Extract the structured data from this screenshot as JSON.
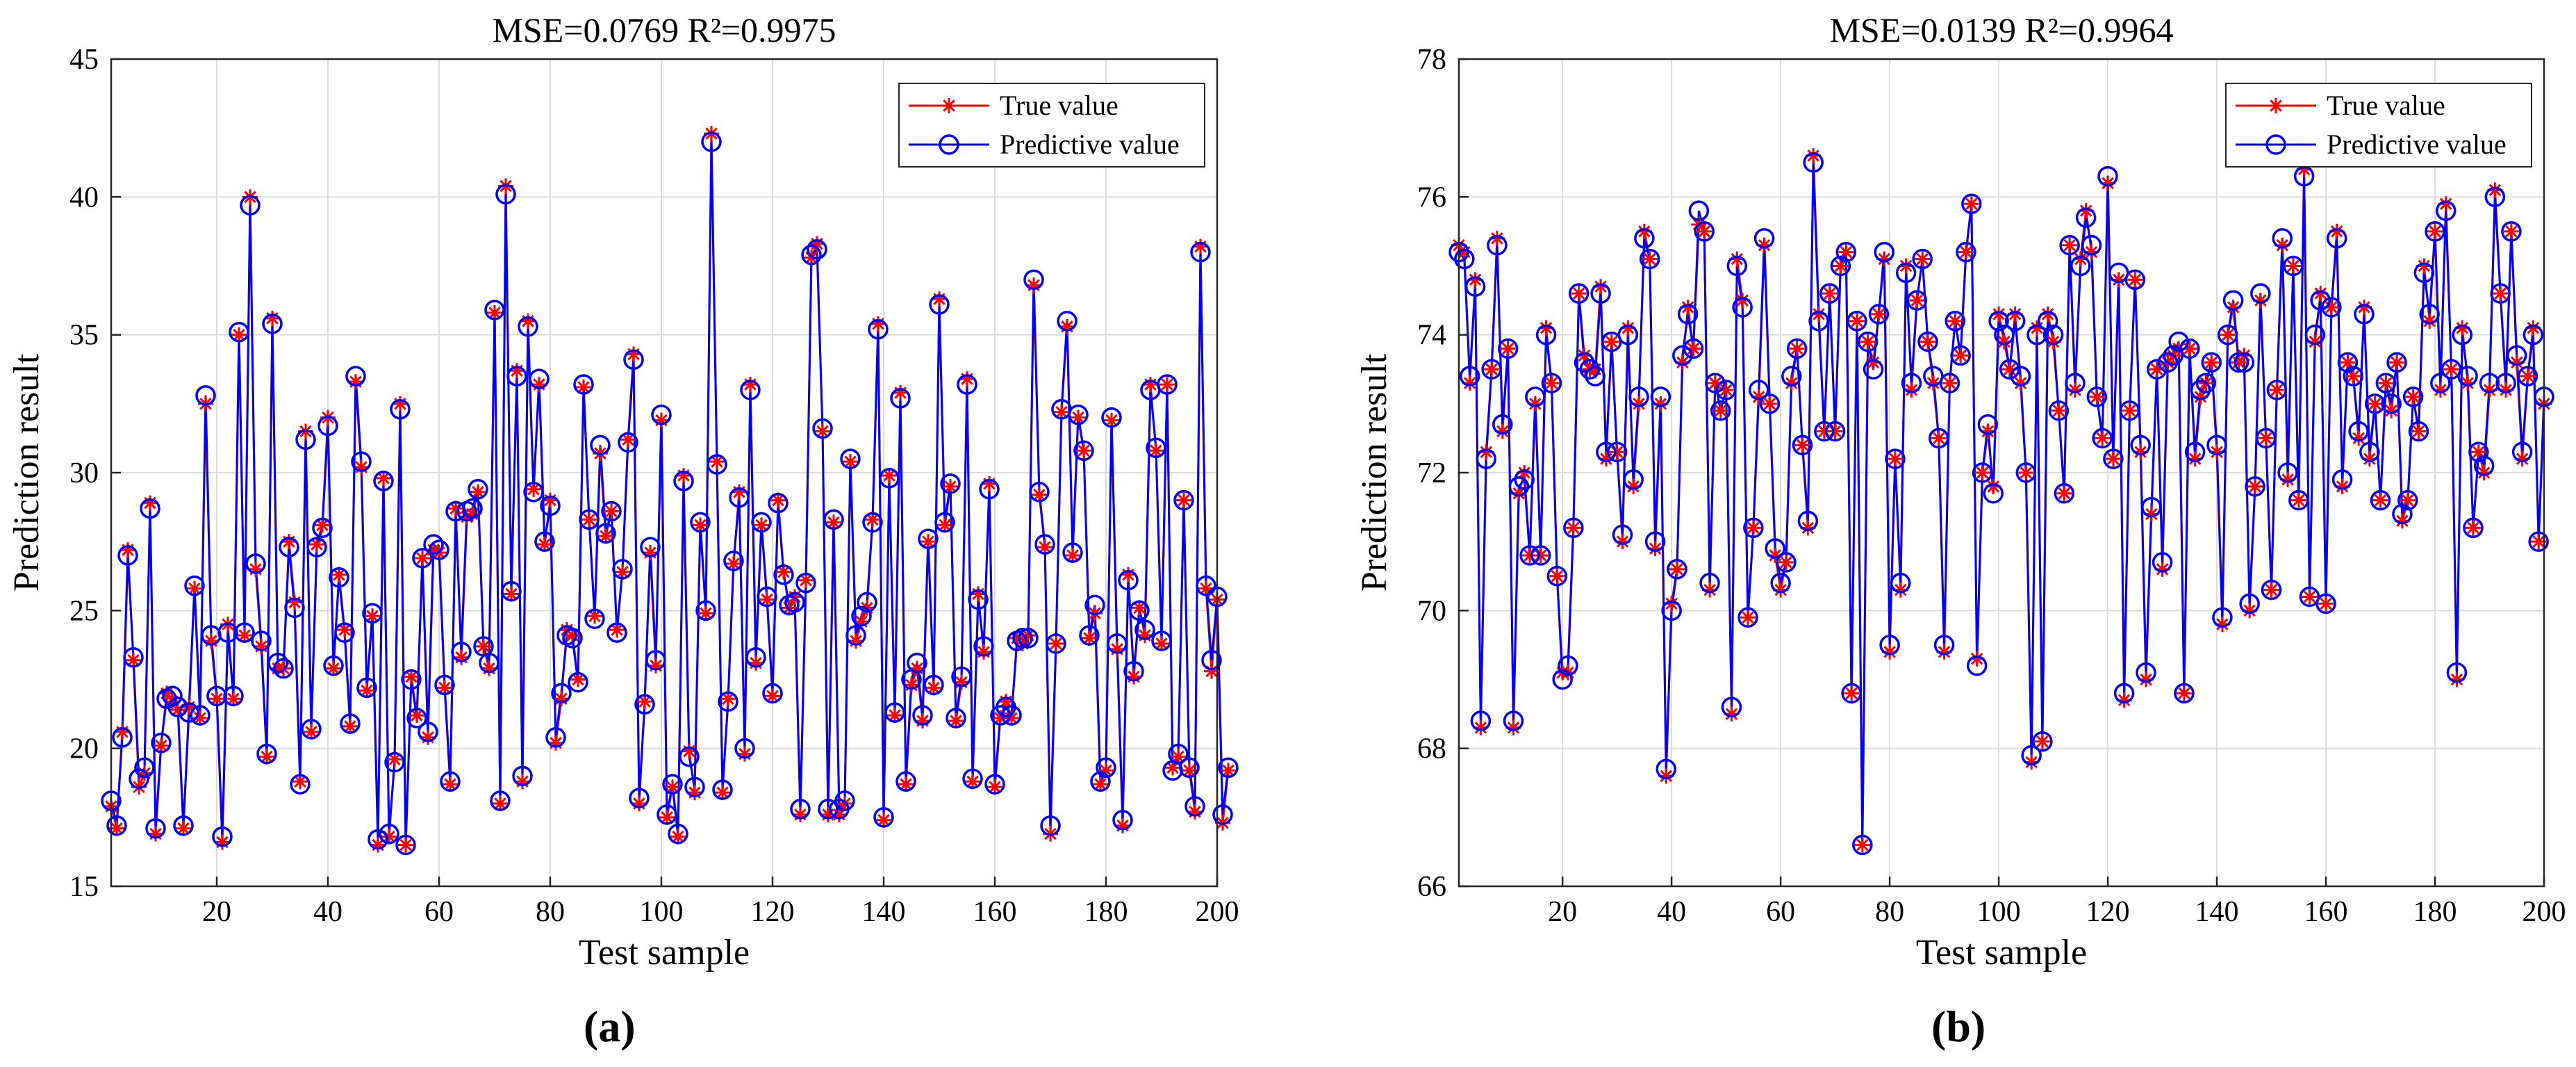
{
  "chart_data": [
    {
      "type": "line",
      "panel_label": "(a)",
      "title": "MSE=0.0769 R²=0.9975",
      "xlabel": "Test sample",
      "ylabel": "Prediction result",
      "xlim": [
        1,
        200
      ],
      "ylim": [
        15,
        45
      ],
      "xticks": [
        20,
        40,
        60,
        80,
        100,
        120,
        140,
        160,
        180,
        200
      ],
      "yticks": [
        15,
        20,
        25,
        30,
        35,
        40,
        45
      ],
      "grid": true,
      "legend_position": "top-right",
      "series": [
        {
          "name": "True value",
          "color": "#ff0000",
          "marker": "asterisk",
          "line": true,
          "values": [
            17.9,
            17.1,
            20.6,
            27.2,
            23.2,
            18.6,
            19.1,
            28.9,
            16.9,
            20.1,
            22.0,
            21.7,
            21.4,
            17.1,
            21.5,
            25.8,
            21.1,
            32.5,
            23.9,
            21.8,
            16.6,
            24.5,
            21.8,
            35.0,
            24.1,
            40.0,
            26.5,
            23.7,
            19.7,
            35.6,
            22.9,
            22.9,
            27.5,
            25.3,
            18.8,
            31.5,
            20.6,
            27.4,
            28.1,
            32.0,
            22.9,
            26.3,
            24.3,
            20.8,
            33.3,
            30.2,
            22.1,
            24.8,
            16.5,
            29.8,
            16.8,
            19.6,
            32.5,
            16.5,
            22.6,
            21.2,
            26.9,
            20.4,
            27.2,
            27.1,
            22.2,
            18.7,
            28.7,
            23.3,
            28.4,
            28.5,
            29.3,
            23.7,
            22.9,
            35.8,
            18.0,
            40.4,
            25.6,
            33.7,
            18.8,
            35.5,
            29.4,
            33.2,
            27.4,
            29.0,
            20.2,
            21.8,
            24.3,
            24.1,
            22.5,
            33.1,
            28.3,
            24.8,
            30.7,
            27.7,
            28.6,
            24.3,
            26.4,
            31.2,
            34.3,
            18.0,
            21.7,
            27.1,
            23.0,
            31.9,
            17.5,
            18.6,
            16.8,
            29.9,
            19.9,
            18.4,
            28.1,
            24.9,
            42.3,
            30.4,
            18.4,
            21.8,
            26.7,
            29.3,
            19.8,
            33.2,
            23.1,
            28.1,
            25.4,
            21.9,
            29.0,
            26.4,
            25.1,
            25.5,
            17.6,
            26.1,
            37.8,
            38.3,
            31.5,
            17.6,
            28.2,
            17.6,
            18.0,
            30.4,
            23.9,
            24.6,
            25.1,
            28.3,
            35.4,
            17.4,
            29.9,
            21.2,
            32.9,
            18.7,
            22.3,
            22.9,
            21.0,
            27.5,
            22.2,
            36.3,
            28.1,
            29.5,
            21.0,
            22.4,
            33.4,
            18.8,
            25.6,
            23.5,
            29.6,
            18.6,
            21.1,
            21.7,
            21.1,
            24.0,
            23.8,
            24.1,
            36.8,
            29.2,
            27.3,
            16.9,
            23.8,
            32.2,
            35.3,
            27.0,
            32.0,
            30.8,
            24.0,
            24.9,
            18.7,
            19.2,
            31.9,
            23.6,
            17.2,
            26.3,
            22.6,
            25.1,
            24.1,
            33.2,
            30.8,
            23.8,
            33.2,
            19.3,
            19.7,
            29.0,
            19.2,
            17.7,
            38.2,
            25.8,
            22.8,
            25.4,
            17.3,
            19.2
          ]
        },
        {
          "name": "Predictive value",
          "color": "#0000ff",
          "marker": "circle",
          "line": true,
          "values": [
            18.1,
            17.2,
            20.4,
            27.0,
            23.3,
            18.9,
            19.3,
            28.7,
            17.1,
            20.2,
            21.8,
            21.9,
            21.5,
            17.2,
            21.3,
            25.9,
            21.2,
            32.8,
            24.1,
            21.9,
            16.8,
            24.2,
            21.9,
            35.1,
            24.2,
            39.7,
            26.7,
            23.9,
            19.8,
            35.4,
            23.1,
            22.9,
            27.3,
            25.1,
            18.7,
            31.2,
            20.7,
            27.3,
            28.0,
            31.7,
            23.0,
            26.2,
            24.2,
            20.9,
            33.5,
            30.4,
            22.2,
            24.9,
            16.7,
            29.7,
            16.9,
            19.5,
            32.3,
            16.5,
            22.5,
            21.1,
            26.9,
            20.6,
            27.4,
            27.2,
            22.3,
            18.8,
            28.6,
            23.5,
            28.6,
            28.7,
            29.4,
            23.7,
            23.1,
            35.9,
            18.1,
            40.1,
            25.7,
            33.5,
            19.0,
            35.3,
            29.3,
            33.4,
            27.5,
            28.8,
            20.4,
            22.0,
            24.1,
            24.0,
            22.4,
            33.2,
            28.3,
            24.7,
            31.0,
            27.8,
            28.6,
            24.2,
            26.5,
            31.1,
            34.1,
            18.2,
            21.6,
            27.3,
            23.2,
            32.1,
            17.6,
            18.7,
            16.9,
            29.7,
            19.7,
            18.6,
            28.2,
            25.0,
            42.0,
            30.3,
            18.5,
            21.7,
            26.8,
            29.1,
            20.0,
            33.0,
            23.3,
            28.2,
            25.5,
            22.0,
            28.9,
            26.3,
            25.2,
            25.3,
            17.8,
            26.0,
            37.9,
            38.1,
            31.6,
            17.8,
            28.3,
            17.8,
            18.1,
            30.5,
            24.1,
            24.8,
            25.3,
            28.2,
            35.2,
            17.5,
            29.8,
            21.3,
            32.7,
            18.8,
            22.5,
            23.1,
            21.2,
            27.6,
            22.3,
            36.1,
            28.2,
            29.6,
            21.1,
            22.6,
            33.2,
            18.9,
            25.4,
            23.7,
            29.4,
            18.7,
            21.2,
            21.5,
            21.2,
            23.9,
            24.0,
            24.0,
            37.0,
            29.3,
            27.4,
            17.2,
            23.8,
            32.3,
            35.5,
            27.1,
            32.1,
            30.8,
            24.1,
            25.2,
            18.8,
            19.3,
            32.0,
            23.8,
            17.4,
            26.1,
            22.8,
            25.0,
            24.3,
            33.0,
            30.9,
            23.9,
            33.2,
            19.2,
            19.8,
            29.0,
            19.3,
            17.9,
            38.0,
            25.9,
            23.2,
            25.5,
            17.6,
            19.3
          ]
        }
      ]
    },
    {
      "type": "line",
      "panel_label": "(b)",
      "title": "MSE=0.0139 R²=0.9964",
      "xlabel": "Test sample",
      "ylabel": "Prediction result",
      "xlim": [
        1,
        200
      ],
      "ylim": [
        66,
        78
      ],
      "xticks": [
        20,
        40,
        60,
        80,
        100,
        120,
        140,
        160,
        180,
        200
      ],
      "yticks": [
        66,
        68,
        70,
        72,
        74,
        76,
        78
      ],
      "grid": true,
      "legend_position": "top-right",
      "series": [
        {
          "name": "True value",
          "color": "#ff0000",
          "marker": "asterisk",
          "line": true,
          "values": [
            75.3,
            75.2,
            73.3,
            74.8,
            68.3,
            72.3,
            73.5,
            75.4,
            72.6,
            73.8,
            68.3,
            71.7,
            72.0,
            70.8,
            73.0,
            70.8,
            74.1,
            73.3,
            70.5,
            69.1,
            69.1,
            71.2,
            74.6,
            73.7,
            73.5,
            73.5,
            74.7,
            72.2,
            73.9,
            72.3,
            71.0,
            74.1,
            71.8,
            73.0,
            75.5,
            75.1,
            70.9,
            73.0,
            67.6,
            70.1,
            70.6,
            73.6,
            74.4,
            73.8,
            75.6,
            75.5,
            70.3,
            73.3,
            72.9,
            73.2,
            68.5,
            75.1,
            74.5,
            69.9,
            71.2,
            73.1,
            75.3,
            73.0,
            70.8,
            70.3,
            70.7,
            73.3,
            73.8,
            72.4,
            71.2,
            76.6,
            74.3,
            72.6,
            74.6,
            72.6,
            75.0,
            75.2,
            68.8,
            74.2,
            66.6,
            73.9,
            73.6,
            74.3,
            75.1,
            69.4,
            72.2,
            70.3,
            75.0,
            73.2,
            74.5,
            75.1,
            73.9,
            73.3,
            72.5,
            69.4,
            73.3,
            74.2,
            73.7,
            75.2,
            75.9,
            69.3,
            72.0,
            72.6,
            71.8,
            74.3,
            73.9,
            73.5,
            74.3,
            73.3,
            72.0,
            67.8,
            74.1,
            68.1,
            74.3,
            73.9,
            72.9,
            71.7,
            75.3,
            73.2,
            75.1,
            75.8,
            75.2,
            73.1,
            72.5,
            76.2,
            72.2,
            74.8,
            68.7,
            72.9,
            74.8,
            72.3,
            69.0,
            71.4,
            73.5,
            70.6,
            73.6,
            73.7,
            73.8,
            68.8,
            73.8,
            72.2,
            73.1,
            73.3,
            73.6,
            72.3,
            69.8,
            74.0,
            74.4,
            73.6,
            73.7,
            70.0,
            71.8,
            74.5,
            72.5,
            70.3,
            73.2,
            75.3,
            71.9,
            75.0,
            71.6,
            76.4,
            70.2,
            73.9,
            74.6,
            70.1,
            74.4,
            75.5,
            71.8,
            73.6,
            73.4,
            72.5,
            74.4,
            72.2,
            73.0,
            71.6,
            73.3,
            72.9,
            73.6,
            71.3,
            71.6,
            73.1,
            72.6,
            75.0,
            74.2,
            75.5,
            73.2,
            75.9,
            73.5,
            69.0,
            74.1,
            73.3,
            71.2,
            72.3,
            72.0,
            73.2,
            76.1,
            74.6,
            73.2,
            75.5,
            73.6,
            72.2,
            73.4,
            74.1,
            71.0,
            73.0
          ]
        },
        {
          "name": "Predictive value",
          "color": "#0000ff",
          "marker": "circle",
          "line": true,
          "values": [
            75.2,
            75.1,
            73.4,
            74.7,
            68.4,
            72.2,
            73.5,
            75.3,
            72.7,
            73.8,
            68.4,
            71.8,
            71.9,
            70.8,
            73.1,
            70.8,
            74.0,
            73.3,
            70.5,
            69.0,
            69.2,
            71.2,
            74.6,
            73.6,
            73.5,
            73.4,
            74.6,
            72.3,
            73.9,
            72.3,
            71.1,
            74.0,
            71.9,
            73.1,
            75.4,
            75.1,
            71.0,
            73.1,
            67.7,
            70.0,
            70.6,
            73.7,
            74.3,
            73.8,
            75.8,
            75.5,
            70.4,
            73.3,
            72.9,
            73.2,
            68.6,
            75.0,
            74.4,
            69.9,
            71.2,
            73.2,
            75.4,
            73.0,
            70.9,
            70.4,
            70.7,
            73.4,
            73.8,
            72.4,
            71.3,
            76.5,
            74.2,
            72.6,
            74.6,
            72.6,
            75.0,
            75.2,
            68.8,
            74.2,
            66.6,
            73.9,
            73.5,
            74.3,
            75.2,
            69.5,
            72.2,
            70.4,
            74.9,
            73.3,
            74.5,
            75.1,
            73.9,
            73.4,
            72.5,
            69.5,
            73.3,
            74.2,
            73.7,
            75.2,
            75.9,
            69.2,
            72.0,
            72.7,
            71.7,
            74.2,
            74.0,
            73.5,
            74.2,
            73.4,
            72.0,
            67.9,
            74.0,
            68.1,
            74.2,
            74.0,
            72.9,
            71.7,
            75.3,
            73.3,
            75.0,
            75.7,
            75.3,
            73.1,
            72.5,
            76.3,
            72.2,
            74.9,
            68.8,
            72.9,
            74.8,
            72.4,
            69.1,
            71.5,
            73.5,
            70.7,
            73.6,
            73.7,
            73.9,
            68.8,
            73.8,
            72.3,
            73.2,
            73.3,
            73.6,
            72.4,
            69.9,
            74.0,
            74.5,
            73.6,
            73.6,
            70.1,
            71.8,
            74.6,
            72.5,
            70.3,
            73.2,
            75.4,
            72.0,
            75.0,
            71.6,
            76.3,
            70.2,
            74.0,
            74.5,
            70.1,
            74.4,
            75.4,
            71.9,
            73.6,
            73.4,
            72.6,
            74.3,
            72.3,
            73.0,
            71.6,
            73.3,
            73.0,
            73.6,
            71.4,
            71.6,
            73.1,
            72.6,
            74.9,
            74.3,
            75.5,
            73.3,
            75.8,
            73.5,
            69.1,
            74.0,
            73.4,
            71.2,
            72.3,
            72.1,
            73.3,
            76.0,
            74.6,
            73.3,
            75.5,
            73.7,
            72.3,
            73.4,
            74.0,
            71.0,
            73.1
          ]
        }
      ]
    }
  ]
}
